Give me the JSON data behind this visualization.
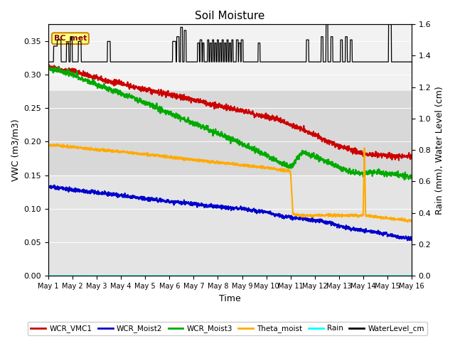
{
  "title": "Soil Moisture",
  "xlabel": "Time",
  "ylabel_left": "VWC (m3/m3)",
  "ylabel_right": "Rain (mm), Water Level (cm)",
  "xlim": [
    0,
    15
  ],
  "ylim_left": [
    0.0,
    0.375
  ],
  "ylim_right": [
    0.0,
    1.6
  ],
  "xtick_labels": [
    "May 1",
    "May 2",
    "May 3",
    "May 4",
    "May 5",
    "May 6",
    "May 7",
    "May 8",
    "May 9",
    "May 10",
    "May 11",
    "May 12",
    "May 13",
    "May 14",
    "May 15",
    "May 16"
  ],
  "yticks_left": [
    0.0,
    0.05,
    0.1,
    0.15,
    0.2,
    0.25,
    0.3,
    0.35
  ],
  "yticks_right": [
    0.0,
    0.2,
    0.4,
    0.6,
    0.8,
    1.0,
    1.2,
    1.4,
    1.6
  ],
  "bg_color": "#e8e8e8",
  "bg_band1": [
    0.28,
    0.375
  ],
  "bg_band1_color": "#f0f0f0",
  "bg_band2": [
    0.15,
    0.275
  ],
  "bg_band2_color": "#dcdcdc",
  "bg_band3": [
    0.0,
    0.15
  ],
  "bg_band3_color": "#e8e8e8",
  "legend_entries": [
    "WCR_VMC1",
    "WCR_Moist2",
    "WCR_Moist3",
    "Theta_moist",
    "Rain",
    "WaterLevel_cm"
  ],
  "legend_colors": [
    "#cc0000",
    "#0000cc",
    "#00aa00",
    "#ffaa00",
    "cyan",
    "black"
  ],
  "bc_met_label": "BC_met",
  "bc_met_facecolor": "#ffff88",
  "bc_met_edgecolor": "#cc8800",
  "title_fontsize": 11,
  "axis_fontsize": 9,
  "tick_fontsize": 8
}
